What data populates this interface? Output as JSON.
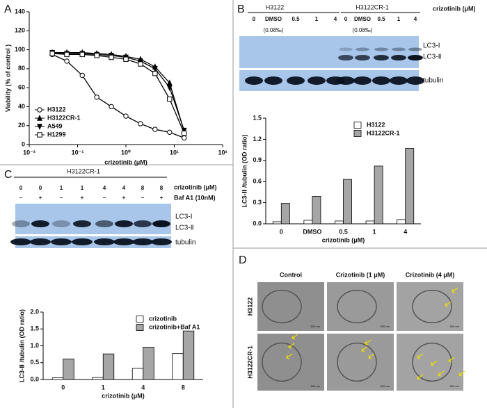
{
  "panels": [
    "A",
    "B",
    "C",
    "D"
  ],
  "chart_data": [
    {
      "type": "line",
      "xlabel": "crizotinib (μM)",
      "ylabel": "Viability (% of control )",
      "xscale": "log",
      "xlim": [
        0.01,
        100
      ],
      "xticks": [
        {
          "value": 0.01,
          "label": "10⁻²"
        },
        {
          "value": 0.1,
          "label": "10⁻¹"
        },
        {
          "value": 1,
          "label": "10⁰"
        },
        {
          "value": 10,
          "label": "10¹"
        },
        {
          "value": 100,
          "label": "10²"
        }
      ],
      "ylim": [
        0,
        140
      ],
      "yticks": [
        0,
        20,
        40,
        60,
        80,
        100,
        120,
        140
      ],
      "legend": "lower left",
      "x": [
        0.03,
        0.06,
        0.125,
        0.25,
        0.5,
        1,
        2,
        4,
        8,
        16
      ],
      "series": [
        {
          "name": "H3122",
          "color": "#000000",
          "marker": "circle",
          "values": [
            95,
            88,
            73,
            50,
            40,
            30,
            22,
            16,
            13,
            7
          ]
        },
        {
          "name": "H3122CR-1",
          "color": "#000000",
          "marker": "triangle-up",
          "values": [
            97,
            97,
            97,
            96,
            95,
            93,
            90,
            82,
            65,
            14
          ]
        },
        {
          "name": "A549",
          "color": "#000000",
          "marker": "triangle-down",
          "values": [
            97,
            96,
            96,
            95,
            94,
            92,
            88,
            80,
            60,
            15
          ]
        },
        {
          "name": "H1299",
          "color": "#000000",
          "marker": "square",
          "values": [
            96,
            95,
            95,
            94,
            92,
            90,
            85,
            75,
            48,
            12
          ]
        }
      ]
    },
    {
      "type": "bar",
      "xlabel": "crizotinib (μM)",
      "ylabel": "LC3-Ⅱ /tubulin (OD ratio)",
      "categories": [
        "0",
        "DMSO",
        "0.5",
        "1",
        "4"
      ],
      "ylim": [
        0,
        1.5
      ],
      "yticks": [
        {
          "value": 0,
          "label": "0.0"
        },
        0.3,
        0.6,
        0.9,
        1.2,
        1.5
      ],
      "legend": "upper right",
      "series": [
        {
          "name": "H3122",
          "color": "#ffffff",
          "values": [
            0.03,
            0.05,
            0.04,
            0.04,
            0.06
          ]
        },
        {
          "name": "H3122CR-1",
          "color": "#a6a6a6",
          "values": [
            0.29,
            0.39,
            0.63,
            0.82,
            1.07
          ]
        }
      ]
    },
    {
      "type": "bar",
      "xlabel": "crizotinib (μM)",
      "ylabel": "LC3-Ⅱ /tubulin (OD ratio)",
      "categories": [
        "0",
        "1",
        "4",
        "8"
      ],
      "ylim": [
        0,
        2
      ],
      "yticks": [
        {
          "value": 0,
          "label": "0.0"
        },
        0.5,
        {
          "value": 1,
          "label": "1.0"
        },
        1.5,
        {
          "value": 2,
          "label": "2.0"
        }
      ],
      "legend": "upper right",
      "series": [
        {
          "name": "crizotinib",
          "color": "#ffffff",
          "values": [
            0.05,
            0.06,
            0.33,
            0.77
          ]
        },
        {
          "name": "crizotinib+Baf A1",
          "color": "#a6a6a6",
          "values": [
            0.61,
            0.76,
            0.96,
            1.44
          ]
        }
      ]
    }
  ],
  "blot_b": {
    "groups": [
      "H3122",
      "H3122CR-1"
    ],
    "treatment": "crizotinib (μM)",
    "lanes": [
      "0",
      "DMSO",
      "0.5",
      "1",
      "4",
      "0",
      "DMSO",
      "0.5",
      "1",
      "4"
    ],
    "vehicle": [
      "(0.08‰)",
      "(0.08‰)"
    ],
    "bands": [
      "LC3-Ⅰ",
      "LC3-Ⅱ",
      "tubulin"
    ]
  },
  "blot_c": {
    "group": "H3122CR-1",
    "treatments": [
      "crizotinib (μM)",
      "Baf A1 (10nM)"
    ],
    "crizotinib": [
      "0",
      "0",
      "1",
      "1",
      "4",
      "4",
      "8",
      "8"
    ],
    "baf": [
      "–",
      "+",
      "–",
      "+",
      "–",
      "+",
      "–",
      "+"
    ],
    "bands": [
      "LC3-Ⅰ",
      "LC3-Ⅱ",
      "tubulin"
    ]
  },
  "em": {
    "columns": [
      "Control",
      "Crizotinib (1 μM)",
      "Crizotinib (4 μM)"
    ],
    "rows": [
      "H3122",
      "H3122CR-1"
    ],
    "scale": "500 nm"
  }
}
